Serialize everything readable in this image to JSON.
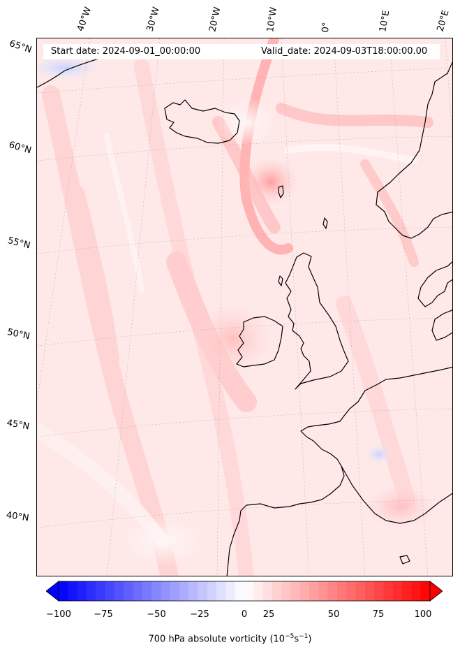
{
  "header": {
    "start_label": "Start date: 2024-09-01_00:00:00",
    "valid_label": "Valid_date: 2024-09-03T18:00:00.00"
  },
  "longitude_labels": [
    "40°W",
    "30°W",
    "20°W",
    "10°W",
    "0°",
    "10°E",
    "20°E"
  ],
  "latitude_labels": [
    "65°N",
    "60°N",
    "55°N",
    "50°N",
    "45°N",
    "40°N"
  ],
  "colorbar": {
    "ticks": [
      "−100",
      "−75",
      "−50",
      "−25",
      "0",
      "25",
      "50",
      "75",
      "100"
    ],
    "min": -100,
    "max": 100,
    "label_main": "700 hPa absolute vorticity (10",
    "label_exp1": "−5",
    "label_mid": "s",
    "label_exp2": "−1",
    "label_end": ")",
    "colors": {
      "negative": "#0000ff",
      "zero": "#ffffff",
      "positive": "#ff0000"
    }
  }
}
